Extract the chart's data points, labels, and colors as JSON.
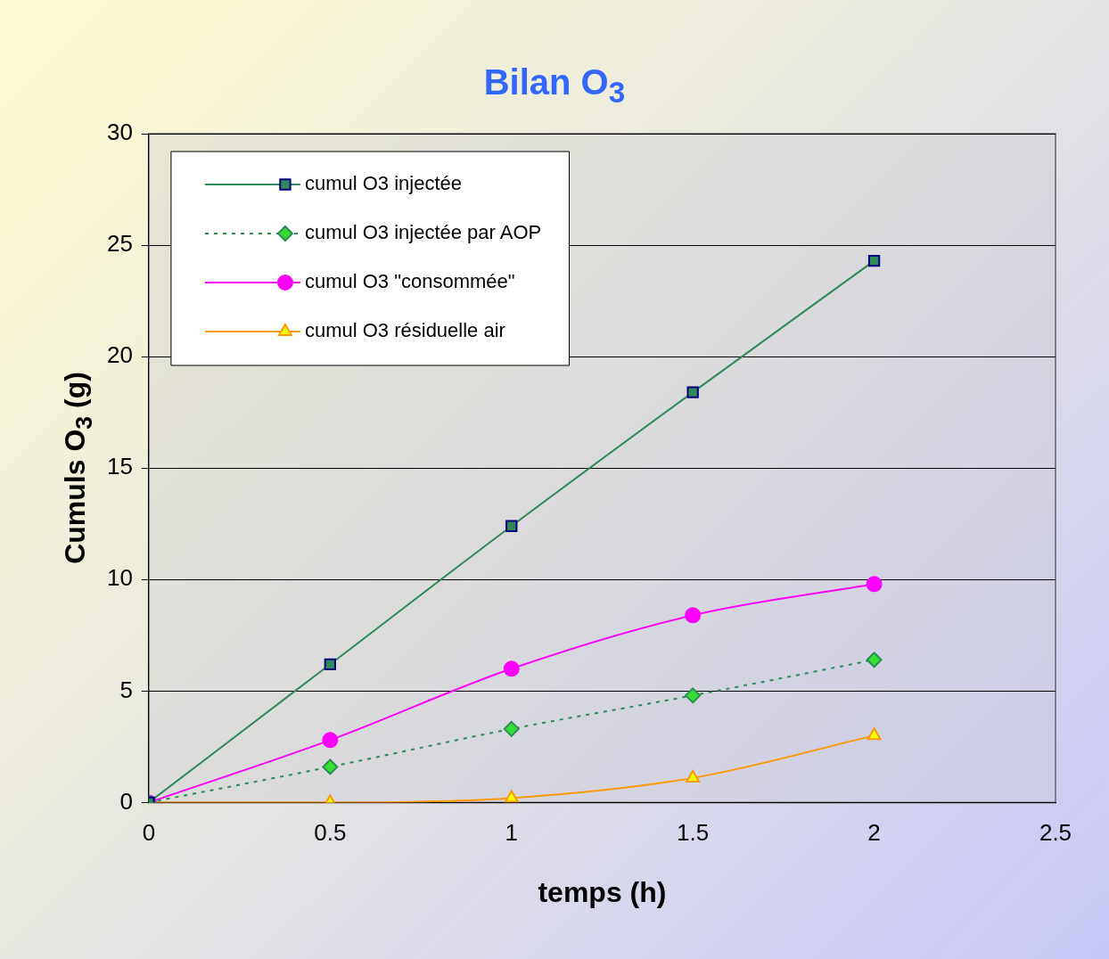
{
  "chart_data": {
    "type": "line",
    "title": "Bilan O$_{3}$",
    "xlabel": "temps (h)",
    "ylabel": "Cumuls O$_{3}$ (g)",
    "x": [
      0,
      0.5,
      1,
      1.5,
      2
    ],
    "series": [
      {
        "name": "cumul O3 injectée",
        "color": "#2e8b57",
        "marker": "square",
        "line_style": "solid",
        "values": [
          0,
          6.2,
          12.4,
          18.4,
          24.3
        ]
      },
      {
        "name": "cumul O3 injectée par AOP",
        "color": "#2e8b57",
        "marker": "diamond",
        "line_style": "dotted",
        "values": [
          0,
          1.6,
          3.3,
          4.8,
          6.4
        ]
      },
      {
        "name": "cumul O3 \"consommée\"",
        "color": "#ff00ff",
        "marker": "circle",
        "line_style": "solid",
        "values": [
          0,
          2.8,
          6.0,
          8.4,
          9.8
        ]
      },
      {
        "name": "cumul O3 résiduelle air",
        "color": "#ff9900",
        "marker": "triangle",
        "line_style": "solid",
        "values": [
          0,
          0,
          0.2,
          1.1,
          3.0
        ]
      }
    ],
    "xlim": [
      0,
      2.5
    ],
    "xticks": [
      0,
      0.5,
      1,
      1.5,
      2,
      2.5
    ],
    "ylim": [
      0,
      30
    ],
    "yticks": [
      0,
      5,
      10,
      15,
      20,
      25,
      30
    ],
    "grid": "y",
    "legend": "top left"
  }
}
